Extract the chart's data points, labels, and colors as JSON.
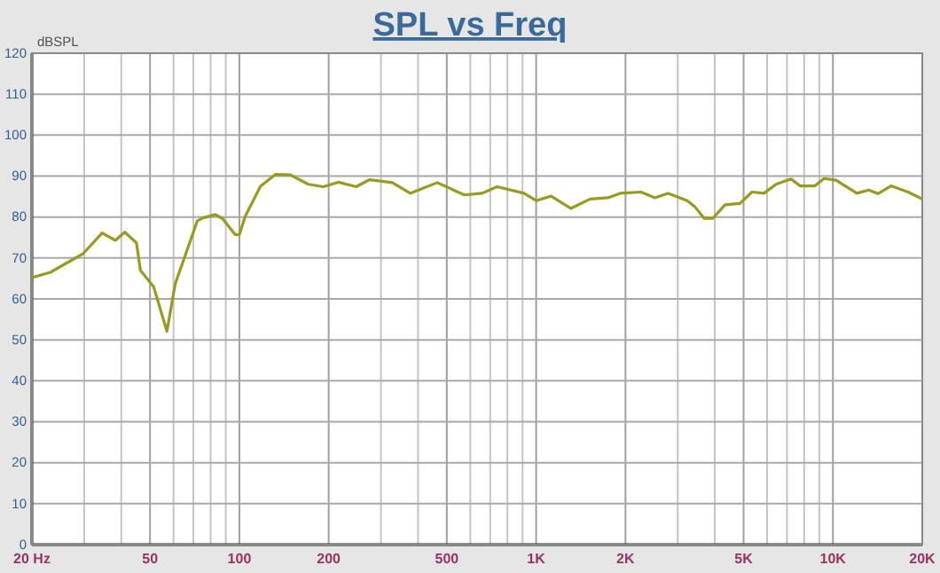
{
  "chart_data": {
    "type": "line",
    "title": "SPL vs Freq",
    "ylabel": "dBSPL",
    "log": "x",
    "grid": true,
    "marker": "none",
    "line_style": "solid",
    "xlim": [
      20,
      20000
    ],
    "ylim": [
      0,
      120
    ],
    "yticks": [
      0,
      10,
      20,
      30,
      40,
      50,
      60,
      70,
      80,
      90,
      100,
      110,
      120
    ],
    "xticks": [
      {
        "value": 20,
        "label": "20  Hz"
      },
      {
        "value": 30,
        "label": null
      },
      {
        "value": 40,
        "label": null
      },
      50,
      {
        "value": 60,
        "label": null
      },
      {
        "value": 70,
        "label": null
      },
      {
        "value": 80,
        "label": null
      },
      {
        "value": 90,
        "label": null
      },
      100,
      200,
      {
        "value": 300,
        "label": null
      },
      {
        "value": 400,
        "label": null
      },
      500,
      {
        "value": 600,
        "label": null
      },
      {
        "value": 700,
        "label": null
      },
      {
        "value": 800,
        "label": null
      },
      {
        "value": 900,
        "label": null
      },
      {
        "value": 1000,
        "label": "1K"
      },
      {
        "value": 2000,
        "label": "2K"
      },
      {
        "value": 3000,
        "label": null
      },
      {
        "value": 4000,
        "label": null
      },
      {
        "value": 5000,
        "label": "5K"
      },
      {
        "value": 6000,
        "label": null
      },
      {
        "value": 7000,
        "label": null
      },
      {
        "value": 8000,
        "label": null
      },
      {
        "value": 9000,
        "label": null
      },
      {
        "value": 10000,
        "label": "10K"
      },
      {
        "value": 20000,
        "label": "20K"
      }
    ],
    "series": [
      {
        "color": "#9a9a1e",
        "x": [
          20,
          23.1,
          25.8,
          29.7,
          34.5,
          38.2,
          41.1,
          45,
          46.4,
          51.4,
          57,
          60.8,
          72.2,
          75.6,
          83,
          87.8,
          96.8,
          100,
          104.7,
          117.8,
          132.2,
          148.5,
          170.7,
          191.9,
          215.5,
          247.7,
          274.2,
          327.6,
          376.6,
          464.2,
          572.7,
          657.9,
          738.9,
          910.3,
          1000,
          1122,
          1309,
          1520,
          1747,
          1918,
          2256,
          2512,
          2780,
          3229,
          3428,
          3676,
          3943,
          4329,
          4862,
          5336,
          5861,
          6427,
          7225,
          7745,
          8698,
          9327,
          10240,
          12040,
          13210,
          14180,
          15710,
          17910,
          20000
        ],
        "values": [
          65.2,
          66.5,
          68.5,
          71,
          76.1,
          74.3,
          76.3,
          73.7,
          67,
          63,
          52.1,
          63.7,
          79.1,
          79.8,
          80.6,
          79.6,
          75.7,
          75.7,
          80.2,
          87.5,
          90.4,
          90.3,
          88,
          87.4,
          88.5,
          87.4,
          89.1,
          88.4,
          85.8,
          88.4,
          85.4,
          85.8,
          87.4,
          85.8,
          84,
          85.1,
          82.1,
          84.4,
          84.7,
          85.8,
          86.1,
          84.7,
          85.8,
          84,
          82.5,
          79.7,
          79.7,
          83,
          83.3,
          86.1,
          85.8,
          88,
          89.3,
          87.6,
          87.6,
          89.4,
          89,
          85.8,
          86.6,
          85.7,
          87.6,
          86.1,
          84.4
        ]
      }
    ]
  }
}
